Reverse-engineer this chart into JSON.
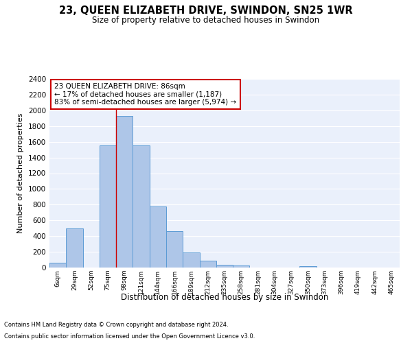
{
  "title": "23, QUEEN ELIZABETH DRIVE, SWINDON, SN25 1WR",
  "subtitle": "Size of property relative to detached houses in Swindon",
  "xlabel": "Distribution of detached houses by size in Swindon",
  "ylabel": "Number of detached properties",
  "footnote1": "Contains HM Land Registry data © Crown copyright and database right 2024.",
  "footnote2": "Contains public sector information licensed under the Open Government Licence v3.0.",
  "categories": [
    "6sqm",
    "29sqm",
    "52sqm",
    "75sqm",
    "98sqm",
    "121sqm",
    "144sqm",
    "166sqm",
    "189sqm",
    "212sqm",
    "235sqm",
    "258sqm",
    "281sqm",
    "304sqm",
    "327sqm",
    "350sqm",
    "373sqm",
    "396sqm",
    "419sqm",
    "442sqm",
    "465sqm"
  ],
  "values": [
    60,
    500,
    0,
    1550,
    1930,
    1550,
    780,
    465,
    190,
    90,
    35,
    30,
    0,
    0,
    0,
    20,
    0,
    0,
    0,
    0,
    0
  ],
  "bar_color": "#aec6e8",
  "bar_edge_color": "#5b9bd5",
  "background_color": "#eaf0fb",
  "grid_color": "#ffffff",
  "annotation_text": "23 QUEEN ELIZABETH DRIVE: 86sqm\n← 17% of detached houses are smaller (1,187)\n83% of semi-detached houses are larger (5,974) →",
  "annotation_box_color": "#ffffff",
  "annotation_box_edge_color": "#cc0000",
  "vline_x": 4,
  "vline_color": "#cc0000",
  "ylim": [
    0,
    2400
  ],
  "yticks": [
    0,
    200,
    400,
    600,
    800,
    1000,
    1200,
    1400,
    1600,
    1800,
    2000,
    2200,
    2400
  ],
  "fig_width": 6.0,
  "fig_height": 5.0,
  "dpi": 100
}
